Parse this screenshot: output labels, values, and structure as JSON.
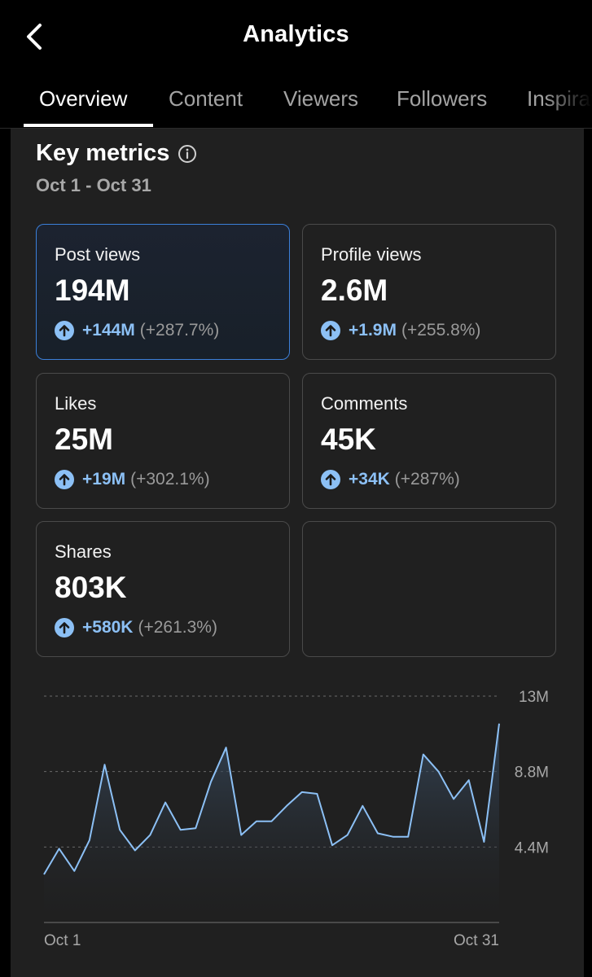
{
  "header": {
    "title": "Analytics"
  },
  "tabs": [
    {
      "label": "Overview",
      "active": true
    },
    {
      "label": "Content",
      "active": false
    },
    {
      "label": "Viewers",
      "active": false
    },
    {
      "label": "Followers",
      "active": false
    },
    {
      "label": "Inspiration",
      "active": false
    }
  ],
  "section": {
    "title": "Key metrics",
    "date_range": "Oct 1 - Oct 31"
  },
  "metrics": [
    {
      "label": "Post views",
      "value": "194M",
      "change": "+144M",
      "change_pct": "(+287.7%)",
      "selected": true
    },
    {
      "label": "Profile views",
      "value": "2.6M",
      "change": "+1.9M",
      "change_pct": "(+255.8%)",
      "selected": false
    },
    {
      "label": "Likes",
      "value": "25M",
      "change": "+19M",
      "change_pct": "(+302.1%)",
      "selected": false
    },
    {
      "label": "Comments",
      "value": "45K",
      "change": "+34K",
      "change_pct": "(+287%)",
      "selected": false
    },
    {
      "label": "Shares",
      "value": "803K",
      "change": "+580K",
      "change_pct": "(+261.3%)",
      "selected": false
    }
  ],
  "colors": {
    "accent": "#8cc0f5",
    "selected_border": "#3b7fd9",
    "panel": "#202020",
    "background": "#000000"
  },
  "chart_data": {
    "type": "area",
    "title": "Post views",
    "x_labels": [
      "Oct 1",
      "Oct 31"
    ],
    "y_tick_labels": [
      "4.4M",
      "8.8M",
      "13M"
    ],
    "y_ticks": [
      4.4,
      8.8,
      13.2
    ],
    "ylim": [
      0,
      13.2
    ],
    "y_unit": "M",
    "grid": true,
    "values": [
      2.8,
      4.3,
      3.0,
      4.8,
      9.2,
      5.4,
      4.2,
      5.1,
      7.0,
      5.4,
      5.5,
      8.2,
      10.2,
      5.1,
      5.9,
      5.9,
      6.8,
      7.6,
      7.5,
      4.5,
      5.1,
      6.8,
      5.2,
      5.0,
      5.0,
      9.8,
      8.8,
      7.2,
      8.3,
      4.7,
      11.6
    ]
  }
}
